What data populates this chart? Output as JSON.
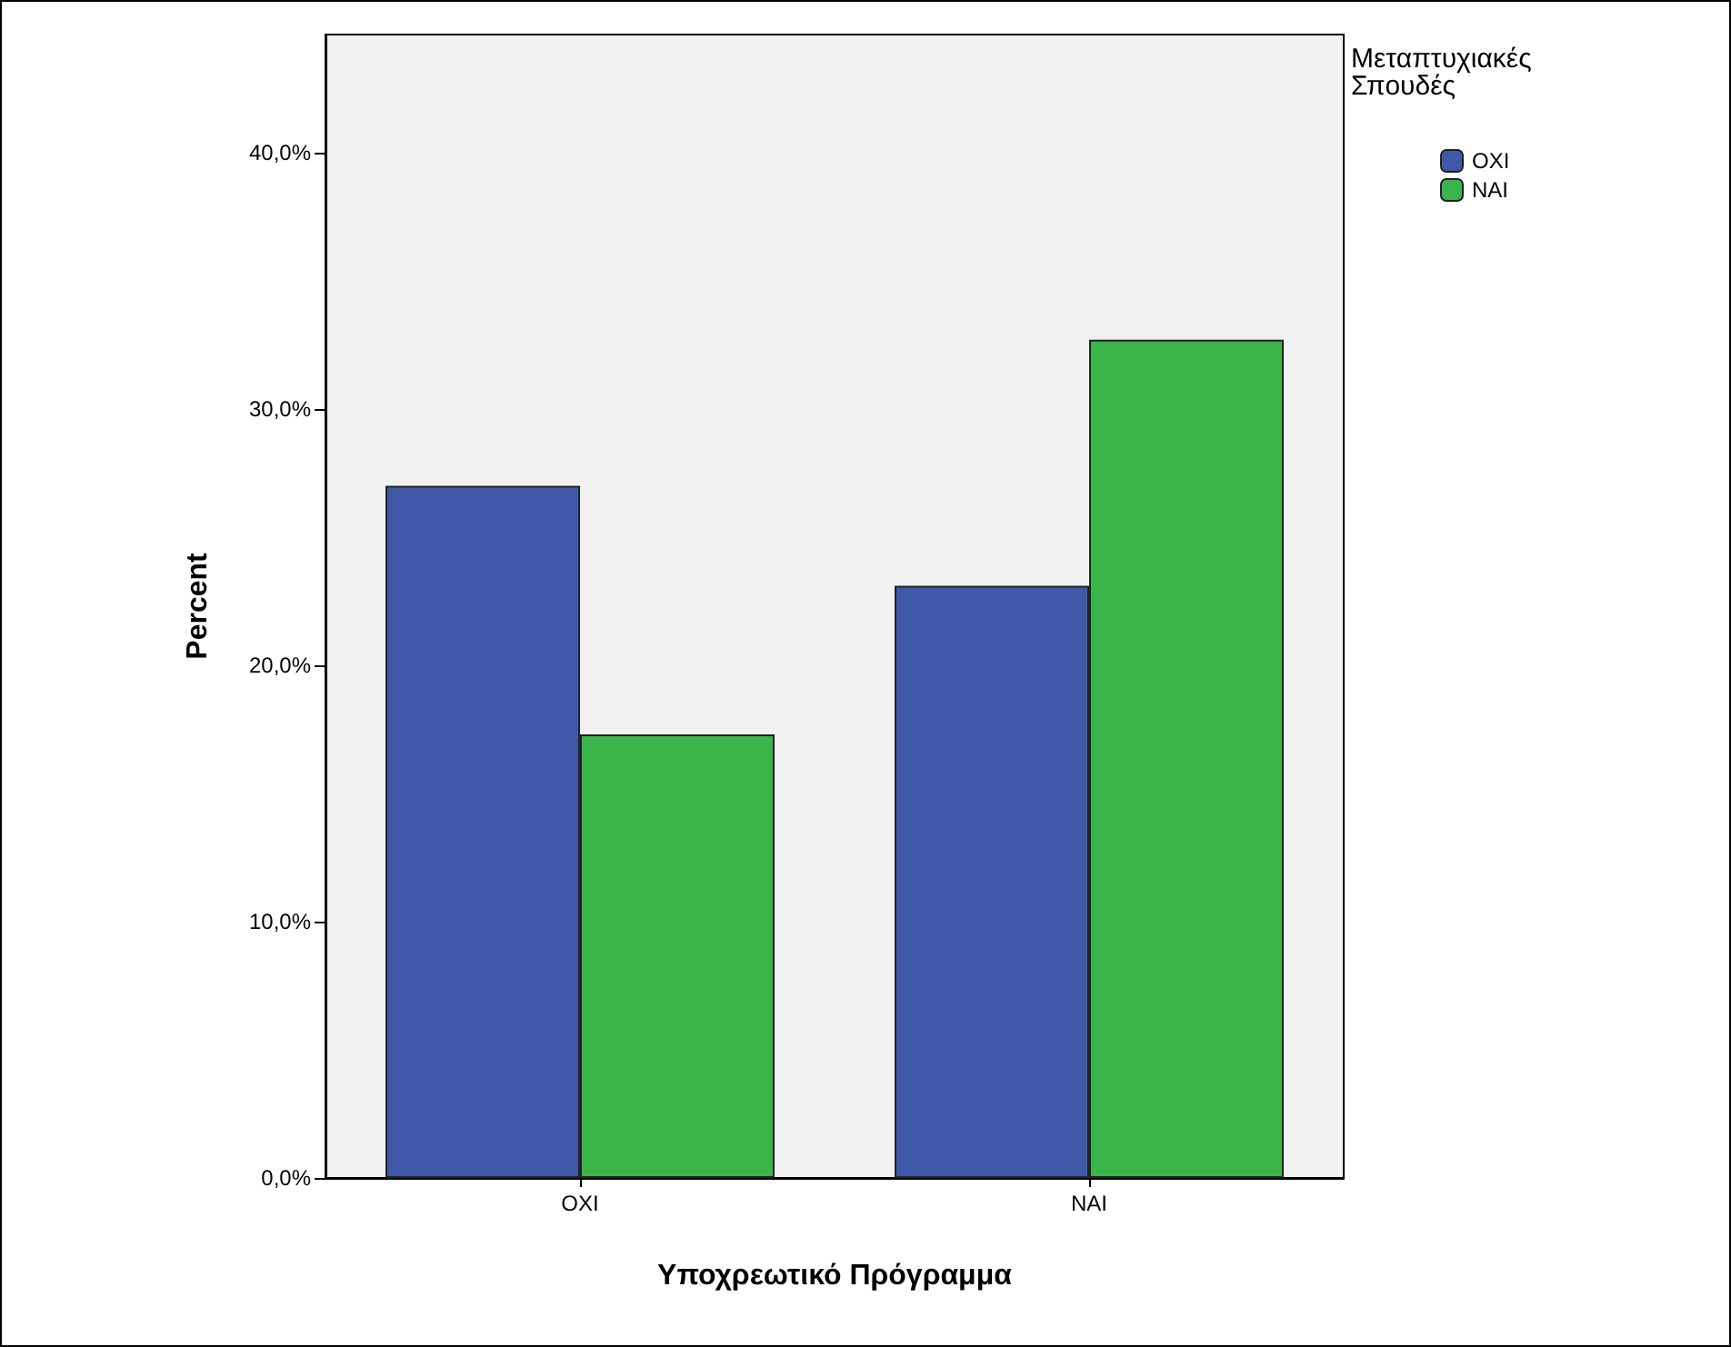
{
  "chart_data": {
    "type": "bar",
    "xlabel": "Υποχρεωτικό Πρόγραμμα",
    "ylabel": "Percent",
    "legend_title": "Μεταπτυχιακές Σπουδές",
    "legend": "top right",
    "grid": false,
    "categories": [
      "ΟΧΙ",
      "ΝΑΙ"
    ],
    "series": [
      {
        "name": "ΟΧΙ",
        "color": "#3f58a8",
        "values": [
          27.0,
          23.1
        ]
      },
      {
        "name": "ΝΑΙ",
        "color": "#3bb44a",
        "values": [
          17.3,
          32.7
        ]
      }
    ],
    "ylim": [
      0,
      44.6
    ],
    "yticks": [
      {
        "value": 0,
        "label": "0,0%"
      },
      {
        "value": 10,
        "label": "10,0%"
      },
      {
        "value": 20,
        "label": "20,0%"
      },
      {
        "value": 30,
        "label": "30,0%"
      },
      {
        "value": 40,
        "label": "40,0%"
      }
    ]
  }
}
